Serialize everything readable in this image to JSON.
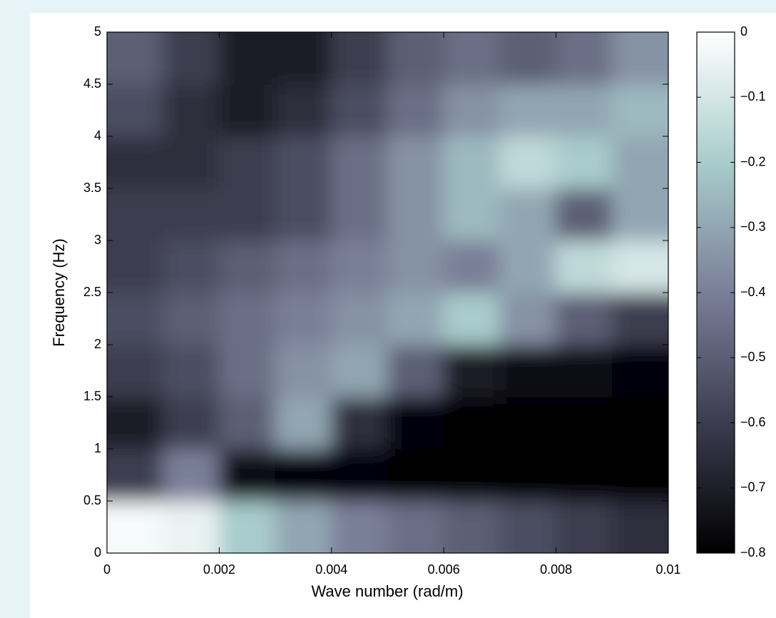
{
  "chart_data": {
    "type": "heatmap",
    "xlabel": "Wave number (rad/m)",
    "ylabel": "Frequency (Hz)",
    "x": [
      0.0005,
      0.0015,
      0.0025,
      0.0035,
      0.0045,
      0.0055,
      0.0065,
      0.0075,
      0.0085,
      0.0095
    ],
    "y": [
      0.25,
      0.75,
      1.25,
      1.75,
      2.25,
      2.75,
      3.25,
      3.75,
      4.25,
      4.75
    ],
    "z": [
      [
        -0.02,
        -0.05,
        -0.2,
        -0.3,
        -0.4,
        -0.45,
        -0.5,
        -0.55,
        -0.6,
        -0.65
      ],
      [
        -0.6,
        -0.4,
        -0.75,
        -0.78,
        -0.78,
        -0.8,
        -0.8,
        -0.8,
        -0.8,
        -0.8
      ],
      [
        -0.7,
        -0.6,
        -0.5,
        -0.3,
        -0.65,
        -0.78,
        -0.8,
        -0.8,
        -0.8,
        -0.8
      ],
      [
        -0.6,
        -0.55,
        -0.45,
        -0.35,
        -0.3,
        -0.5,
        -0.7,
        -0.75,
        -0.75,
        -0.78
      ],
      [
        -0.55,
        -0.5,
        -0.45,
        -0.4,
        -0.35,
        -0.3,
        -0.2,
        -0.35,
        -0.5,
        -0.6
      ],
      [
        -0.6,
        -0.55,
        -0.5,
        -0.45,
        -0.4,
        -0.35,
        -0.4,
        -0.3,
        -0.15,
        -0.1
      ],
      [
        -0.6,
        -0.6,
        -0.6,
        -0.55,
        -0.45,
        -0.35,
        -0.25,
        -0.3,
        -0.5,
        -0.3
      ],
      [
        -0.65,
        -0.65,
        -0.6,
        -0.55,
        -0.45,
        -0.35,
        -0.25,
        -0.15,
        -0.2,
        -0.3
      ],
      [
        -0.55,
        -0.65,
        -0.7,
        -0.65,
        -0.55,
        -0.45,
        -0.35,
        -0.3,
        -0.3,
        -0.25
      ],
      [
        -0.5,
        -0.6,
        -0.7,
        -0.7,
        -0.6,
        -0.5,
        -0.45,
        -0.5,
        -0.45,
        -0.35
      ]
    ],
    "xlim": [
      0,
      0.01
    ],
    "xticks": [
      0,
      0.002,
      0.004,
      0.006,
      0.008,
      0.01
    ],
    "ylim": [
      0,
      5
    ],
    "yticks": [
      0,
      0.5,
      1,
      1.5,
      2,
      2.5,
      3,
      3.5,
      4,
      4.5,
      5
    ],
    "zlim": [
      -0.8,
      0
    ],
    "zticks": [
      0,
      {
        "value": -0.1,
        "label": "−0.1"
      },
      {
        "value": -0.2,
        "label": "−0.2"
      },
      {
        "value": -0.3,
        "label": "−0.3"
      },
      {
        "value": -0.4,
        "label": "−0.4"
      },
      {
        "value": -0.5,
        "label": "−0.5"
      },
      {
        "value": -0.6,
        "label": "−0.6"
      },
      {
        "value": -0.7,
        "label": "−0.7"
      },
      {
        "value": -0.8,
        "label": "−0.8"
      }
    ],
    "colormap": [
      "#000000",
      "#3c3c50",
      "#7a7f98",
      "#a9cccc",
      "#ffffff"
    ]
  }
}
